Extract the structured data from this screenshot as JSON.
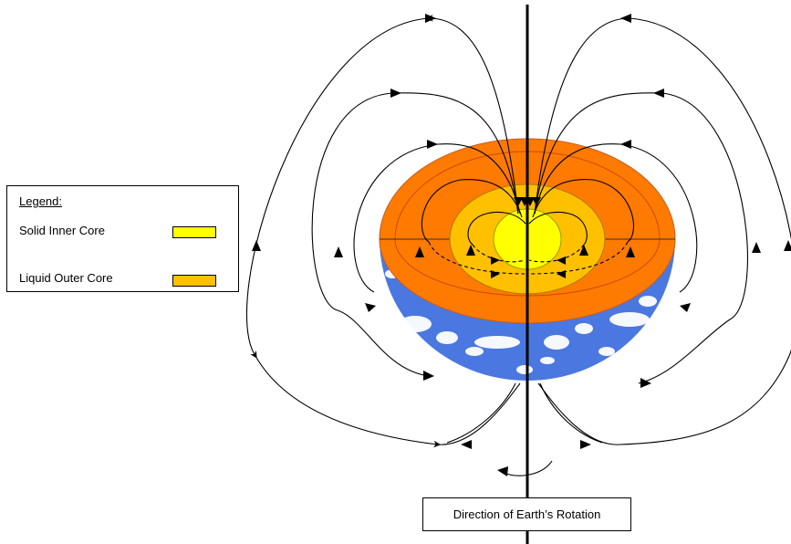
{
  "legend": {
    "title": "Legend:",
    "items": [
      {
        "label": "Solid Inner Core",
        "color": "#ffff00"
      },
      {
        "label": "Liquid Outer Core",
        "color": "#ffc000"
      }
    ]
  },
  "rotation_label": "Direction of Earth’s Rotation",
  "colors": {
    "mantle": "#ff7a00",
    "mantle_edge": "#cc5a1a",
    "ocean": "#4a78e0",
    "cloud": "#ffffff",
    "field_line": "#000000"
  }
}
